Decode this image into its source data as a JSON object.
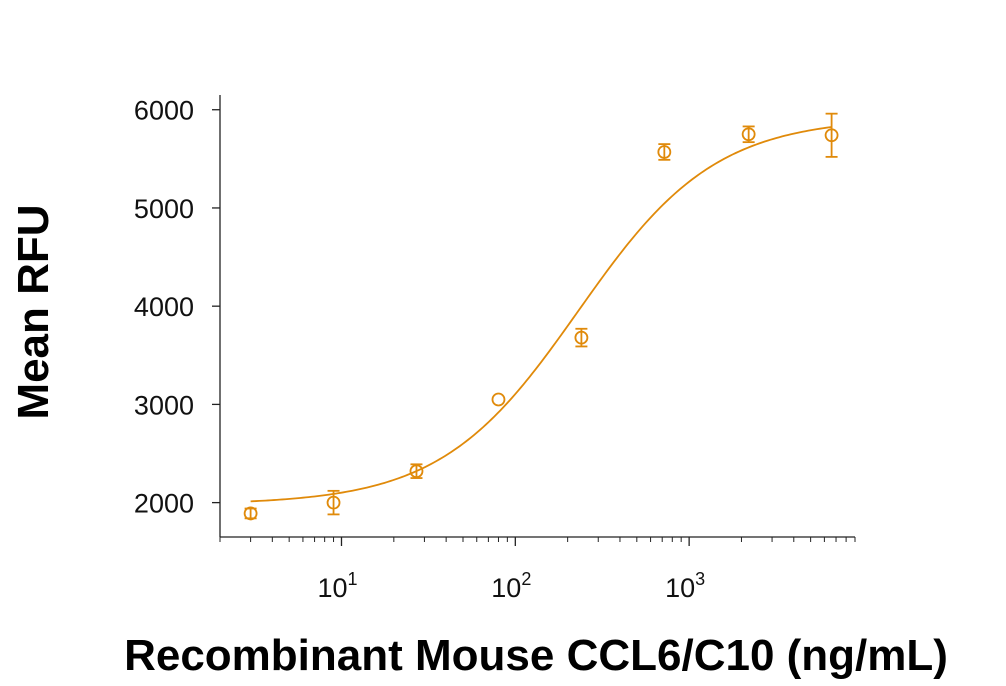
{
  "chart_data": {
    "type": "scatter",
    "title": "",
    "xlabel": "Recombinant Mouse CCL6/C10 (ng/mL)",
    "ylabel": "Mean RFU",
    "xscale": "log",
    "xlim": [
      2,
      9000
    ],
    "ylim": [
      1650,
      6150
    ],
    "grid": false,
    "color": "#E08A0A",
    "x_ticks": [
      {
        "value": 10,
        "base": "10",
        "exp": "1"
      },
      {
        "value": 100,
        "base": "10",
        "exp": "2"
      },
      {
        "value": 1000,
        "base": "10",
        "exp": "3"
      }
    ],
    "y_ticks": [
      2000,
      3000,
      4000,
      5000,
      6000
    ],
    "series": [
      {
        "marker": "open-circle",
        "points": [
          {
            "x": 3.0,
            "y": 1890,
            "err": 50
          },
          {
            "x": 9.0,
            "y": 2000,
            "err": 120
          },
          {
            "x": 27,
            "y": 2320,
            "err": 70
          },
          {
            "x": 80,
            "y": 3050,
            "err": 0
          },
          {
            "x": 240,
            "y": 3680,
            "err": 90
          },
          {
            "x": 720,
            "y": 5570,
            "err": 80
          },
          {
            "x": 2200,
            "y": 5750,
            "err": 80
          },
          {
            "x": 6600,
            "y": 5740,
            "err": 220
          }
        ],
        "fit": {
          "model": "4PL",
          "bottom": 1980,
          "top": 5920,
          "ec50": 230,
          "hill": 1.1
        }
      }
    ]
  }
}
